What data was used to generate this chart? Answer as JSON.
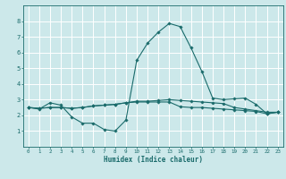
{
  "xlabel": "Humidex (Indice chaleur)",
  "bg_color": "#cce8ea",
  "grid_color": "#ffffff",
  "line_color": "#1a6b6b",
  "xlim": [
    -0.5,
    23.5
  ],
  "ylim": [
    0,
    9
  ],
  "xticks": [
    0,
    1,
    2,
    3,
    4,
    5,
    6,
    7,
    8,
    9,
    10,
    11,
    12,
    13,
    14,
    15,
    16,
    17,
    18,
    19,
    20,
    21,
    22,
    23
  ],
  "yticks": [
    1,
    2,
    3,
    4,
    5,
    6,
    7,
    8
  ],
  "line1_x": [
    0,
    1,
    2,
    3,
    4,
    5,
    6,
    7,
    8,
    9,
    10,
    11,
    12,
    13,
    14,
    15,
    16,
    17,
    18,
    19,
    20,
    21,
    22,
    23
  ],
  "line1_y": [
    2.5,
    2.4,
    2.8,
    2.65,
    1.9,
    1.5,
    1.5,
    1.1,
    1.0,
    1.7,
    5.5,
    6.6,
    7.3,
    7.85,
    7.65,
    6.3,
    4.8,
    3.1,
    3.0,
    3.05,
    3.1,
    2.7,
    2.1,
    2.2
  ],
  "line2_x": [
    0,
    1,
    2,
    3,
    4,
    5,
    6,
    7,
    8,
    9,
    10,
    11,
    12,
    13,
    14,
    15,
    16,
    17,
    18,
    19,
    20,
    21,
    22,
    23
  ],
  "line2_y": [
    2.5,
    2.45,
    2.5,
    2.5,
    2.45,
    2.5,
    2.6,
    2.65,
    2.7,
    2.8,
    2.9,
    2.9,
    2.95,
    3.0,
    2.95,
    2.9,
    2.85,
    2.8,
    2.75,
    2.5,
    2.4,
    2.3,
    2.2,
    2.2
  ],
  "line3_x": [
    0,
    1,
    2,
    3,
    4,
    5,
    6,
    7,
    8,
    9,
    10,
    11,
    12,
    13,
    14,
    15,
    16,
    17,
    18,
    19,
    20,
    21,
    22,
    23
  ],
  "line3_y": [
    2.5,
    2.45,
    2.5,
    2.5,
    2.45,
    2.5,
    2.6,
    2.65,
    2.7,
    2.8,
    2.85,
    2.85,
    2.85,
    2.85,
    2.55,
    2.5,
    2.5,
    2.45,
    2.4,
    2.35,
    2.3,
    2.25,
    2.1,
    2.2
  ]
}
